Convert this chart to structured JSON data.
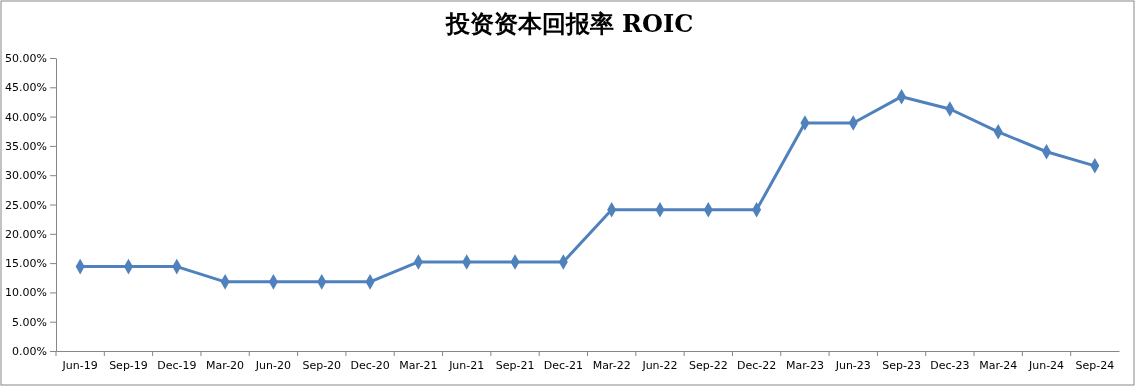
{
  "chart_data": {
    "type": "line",
    "title": "投资资本回报率 ROIC",
    "categories": [
      "Jun-19",
      "Sep-19",
      "Dec-19",
      "Mar-20",
      "Jun-20",
      "Sep-20",
      "Dec-20",
      "Mar-21",
      "Jun-21",
      "Sep-21",
      "Dec-21",
      "Mar-22",
      "Jun-22",
      "Sep-22",
      "Dec-22",
      "Mar-23",
      "Jun-23",
      "Sep-23",
      "Dec-23",
      "Mar-24",
      "Jun-24",
      "Sep-24"
    ],
    "series": [
      {
        "color": "#4f81bd",
        "values": [
          14.4,
          14.4,
          14.4,
          11.8,
          11.8,
          11.8,
          11.8,
          15.2,
          15.2,
          15.2,
          15.2,
          24.1,
          24.1,
          24.1,
          24.1,
          38.9,
          38.9,
          43.4,
          41.3,
          37.4,
          34.0,
          31.6
        ]
      }
    ],
    "ylim": [
      0,
      50
    ],
    "yticks": [
      {
        "value": 0,
        "label": "0.00%"
      },
      {
        "value": 5,
        "label": "5.00%"
      },
      {
        "value": 10,
        "label": "10.00%"
      },
      {
        "value": 15,
        "label": "15.00%"
      },
      {
        "value": 20,
        "label": "20.00%"
      },
      {
        "value": 25,
        "label": "25.00%"
      },
      {
        "value": 30,
        "label": "30.00%"
      },
      {
        "value": 35,
        "label": "35.00%"
      },
      {
        "value": 40,
        "label": "40.00%"
      },
      {
        "value": 45,
        "label": "45.00%"
      },
      {
        "value": 50,
        "label": "50.00%"
      }
    ],
    "grid": false,
    "marker": "diamond",
    "line_style": "solid"
  }
}
